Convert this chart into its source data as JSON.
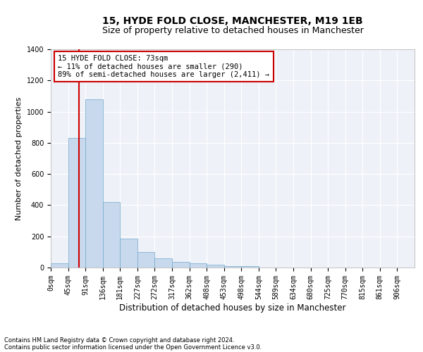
{
  "title1": "15, HYDE FOLD CLOSE, MANCHESTER, M19 1EB",
  "title2": "Size of property relative to detached houses in Manchester",
  "xlabel": "Distribution of detached houses by size in Manchester",
  "ylabel": "Number of detached properties",
  "footnote1": "Contains HM Land Registry data © Crown copyright and database right 2024.",
  "footnote2": "Contains public sector information licensed under the Open Government Licence v3.0.",
  "bar_labels": [
    "0sqm",
    "45sqm",
    "91sqm",
    "136sqm",
    "181sqm",
    "227sqm",
    "272sqm",
    "317sqm",
    "362sqm",
    "408sqm",
    "453sqm",
    "498sqm",
    "544sqm",
    "589sqm",
    "634sqm",
    "680sqm",
    "725sqm",
    "770sqm",
    "815sqm",
    "861sqm",
    "906sqm"
  ],
  "bar_heights": [
    25,
    830,
    1080,
    420,
    185,
    100,
    57,
    35,
    25,
    18,
    10,
    10,
    0,
    0,
    0,
    0,
    0,
    0,
    0,
    0,
    0
  ],
  "bar_color": "#c9d9ed",
  "bar_edge_color": "#6fa8cc",
  "vline_x": 1.62,
  "vline_color": "#cc0000",
  "annotation_text": "15 HYDE FOLD CLOSE: 73sqm\n← 11% of detached houses are smaller (290)\n89% of semi-detached houses are larger (2,411) →",
  "annotation_box_color": "#ffffff",
  "annotation_box_edge": "#cc0000",
  "ylim": [
    0,
    1400
  ],
  "yticks": [
    0,
    200,
    400,
    600,
    800,
    1000,
    1200,
    1400
  ],
  "background_color": "#eef2f8",
  "grid_color": "#ffffff",
  "title1_fontsize": 10,
  "title2_fontsize": 9,
  "xlabel_fontsize": 8.5,
  "ylabel_fontsize": 8,
  "tick_fontsize": 7,
  "annotation_fontsize": 7.5
}
